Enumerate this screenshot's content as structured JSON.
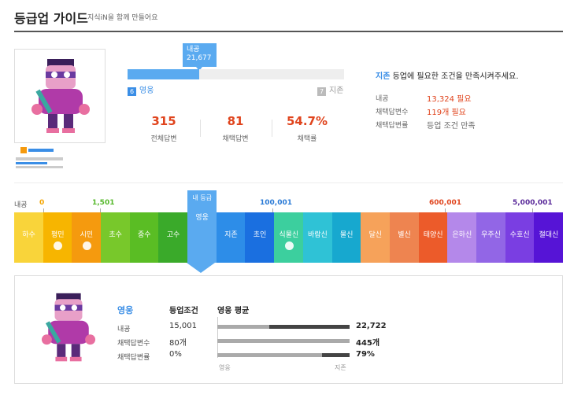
{
  "header": {
    "title": "등급업 가이드",
    "subtitle": "지식iN을 함께 만들어요"
  },
  "profile": {
    "tooltip_label": "내공",
    "tooltip_value": "21,677",
    "progress_fraction": 0.33,
    "current_level_num": "6",
    "current_level": "영웅",
    "next_level_num": "7",
    "next_level": "지존",
    "stats": [
      {
        "value": "315",
        "label": "전체답변"
      },
      {
        "value": "81",
        "label": "채택답변"
      },
      {
        "value": "54.7%",
        "label": "채택률"
      }
    ]
  },
  "conditions": {
    "target": "지존",
    "text": "등업에 필요한 조건을 만족시켜주세요.",
    "rows": [
      {
        "label": "내공",
        "value": "13,324 필요",
        "status": "red"
      },
      {
        "label": "채택답변수",
        "value": "119개 필요",
        "status": "red"
      },
      {
        "label": "채택답변률",
        "value": "등업 조건 만족",
        "status": "gray"
      }
    ]
  },
  "scale": {
    "axis_label": "내공",
    "thresholds": [
      {
        "text": "0",
        "color": "#f5a500"
      },
      {
        "text": "1,501",
        "color": "#55b82a"
      },
      {
        "text": "100,001",
        "color": "#2a7ad6"
      },
      {
        "text": "600,001",
        "color": "#e0441d"
      },
      {
        "text": "5,000,001",
        "color": "#5a2a9a"
      }
    ],
    "current_prefix": "내 등급",
    "levels": [
      {
        "name": "하수",
        "color": "#f9d43a",
        "dot": false
      },
      {
        "name": "평민",
        "color": "#f7b500",
        "dot": true
      },
      {
        "name": "시민",
        "color": "#f59a0e",
        "dot": true
      },
      {
        "name": "초수",
        "color": "#78c82b",
        "dot": false
      },
      {
        "name": "중수",
        "color": "#5abd24",
        "dot": false
      },
      {
        "name": "고수",
        "color": "#3aaa2a",
        "dot": false
      },
      {
        "name": "영웅",
        "color": "#5aaaf0",
        "dot": false,
        "current": true
      },
      {
        "name": "지존",
        "color": "#2d8de8",
        "dot": false
      },
      {
        "name": "초인",
        "color": "#1a6fe0",
        "dot": false
      },
      {
        "name": "식물신",
        "color": "#3ccf9e",
        "dot": true
      },
      {
        "name": "바람신",
        "color": "#2fc2d6",
        "dot": false
      },
      {
        "name": "물신",
        "color": "#17a8cf",
        "dot": false
      },
      {
        "name": "달신",
        "color": "#f6a25a",
        "dot": false
      },
      {
        "name": "별신",
        "color": "#ee8450",
        "dot": false
      },
      {
        "name": "태양신",
        "color": "#ec5b2a",
        "dot": false
      },
      {
        "name": "은하신",
        "color": "#b488ea",
        "dot": false
      },
      {
        "name": "우주신",
        "color": "#9266e6",
        "dot": false
      },
      {
        "name": "수호신",
        "color": "#7a3ee2",
        "dot": false
      },
      {
        "name": "절대신",
        "color": "#5614d6",
        "dot": false
      }
    ]
  },
  "detail": {
    "name": "영웅",
    "col1": "등업조건",
    "col2": "영웅 평균",
    "rows": [
      {
        "label": "내공",
        "cond": "15,001",
        "avg": "22,722",
        "fill": 0.39
      },
      {
        "label": "채택답변수",
        "cond": "80개",
        "avg": "445개",
        "fill": 1.0
      },
      {
        "label": "채택답변률",
        "cond": "0%",
        "avg": "79%",
        "fill": 0.79
      }
    ],
    "axis_left": "영웅",
    "axis_right": "지존"
  }
}
